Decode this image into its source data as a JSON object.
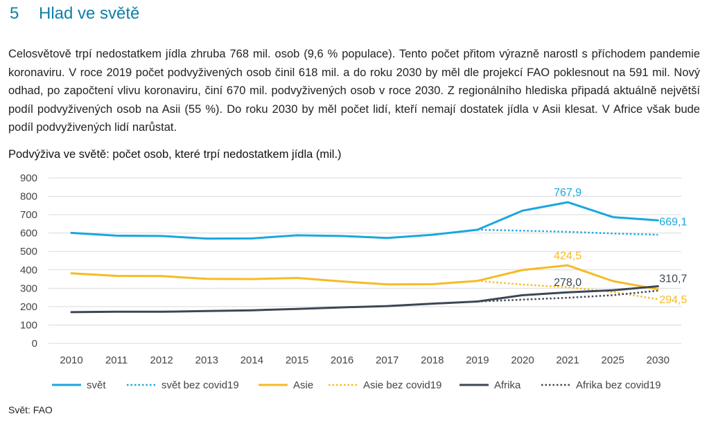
{
  "section": {
    "number": "5",
    "title": "Hlad ve světě"
  },
  "intro": "Celosvětově trpí nedostatkem jídla zhruba 768 mil. osob (9,6 % populace). Tento počet přitom výrazně narostl s příchodem pandemie koronaviru. V roce 2019 počet podvyživených osob činil 618 mil. a do roku 2030 by měl dle projekcí FAO poklesnout na 591 mil. Nový odhad, po započtení vlivu koronaviru, činí 670 mil. podvyživených osob v roce 2030. Z regionálního hlediska připadá aktuálně největší podíl podvyživených osob na Asii (55 %). Do roku 2030 by měl počet lidí, kteří nemají dostatek jídla v Asii klesat. V Africe však bude podíl podvyživených lidí narůstat.",
  "chart_data": {
    "type": "line",
    "title": "Podvýživa ve světě: počet osob, které trpí nedostatkem jídla (mil.)",
    "xlabel": "",
    "ylabel": "",
    "categories": [
      "2010",
      "2011",
      "2012",
      "2013",
      "2014",
      "2015",
      "2016",
      "2017",
      "2018",
      "2019",
      "2020",
      "2021",
      "2025",
      "2030"
    ],
    "ylim": [
      0,
      900
    ],
    "yticks": [
      0,
      100,
      200,
      300,
      400,
      500,
      600,
      700,
      800,
      900
    ],
    "grid": true,
    "legend_position": "bottom",
    "series": [
      {
        "name": "svět",
        "color": "#1aa7df",
        "style": "solid",
        "values": [
          601,
          586,
          584,
          570,
          571,
          588,
          584,
          573,
          591,
          618,
          722,
          767.9,
          687,
          669.1
        ]
      },
      {
        "name": "svět bez covid19",
        "color": "#1aa7df",
        "style": "dotted",
        "values": [
          null,
          null,
          null,
          null,
          null,
          null,
          null,
          null,
          null,
          618,
          613,
          607,
          598,
          591
        ]
      },
      {
        "name": "Asie",
        "color": "#f5bb22",
        "style": "solid",
        "values": [
          381,
          367,
          366,
          351,
          350,
          356,
          337,
          321,
          322,
          340,
          399,
          424.5,
          339,
          294.5
        ]
      },
      {
        "name": "Asie bez covid19",
        "color": "#f5bb22",
        "style": "dotted",
        "values": [
          null,
          null,
          null,
          null,
          null,
          null,
          null,
          null,
          null,
          340,
          320,
          305,
          280,
          240
        ]
      },
      {
        "name": "Afrika",
        "color": "#3d4654",
        "style": "solid",
        "values": [
          170,
          172,
          172,
          176,
          180,
          187,
          196,
          203,
          216,
          228,
          262,
          278.0,
          289,
          310.7
        ]
      },
      {
        "name": "Afrika bez covid19",
        "color": "#3d4654",
        "style": "dotted",
        "values": [
          null,
          null,
          null,
          null,
          null,
          null,
          null,
          null,
          null,
          228,
          238,
          248,
          262,
          287
        ]
      }
    ],
    "annotations": [
      {
        "text": "767,9",
        "series": 0,
        "index": 11,
        "color": "#1aa7df"
      },
      {
        "text": "669,1",
        "series": 0,
        "index": 13,
        "color": "#1aa7df"
      },
      {
        "text": "424,5",
        "series": 2,
        "index": 11,
        "color": "#f5bb22"
      },
      {
        "text": "294,5",
        "series": 2,
        "index": 13,
        "color": "#f5bb22"
      },
      {
        "text": "278,0",
        "series": 4,
        "index": 11,
        "color": "#3d4654"
      },
      {
        "text": "310,7",
        "series": 4,
        "index": 13,
        "color": "#3d4654"
      }
    ]
  },
  "source": "Svět: FAO"
}
